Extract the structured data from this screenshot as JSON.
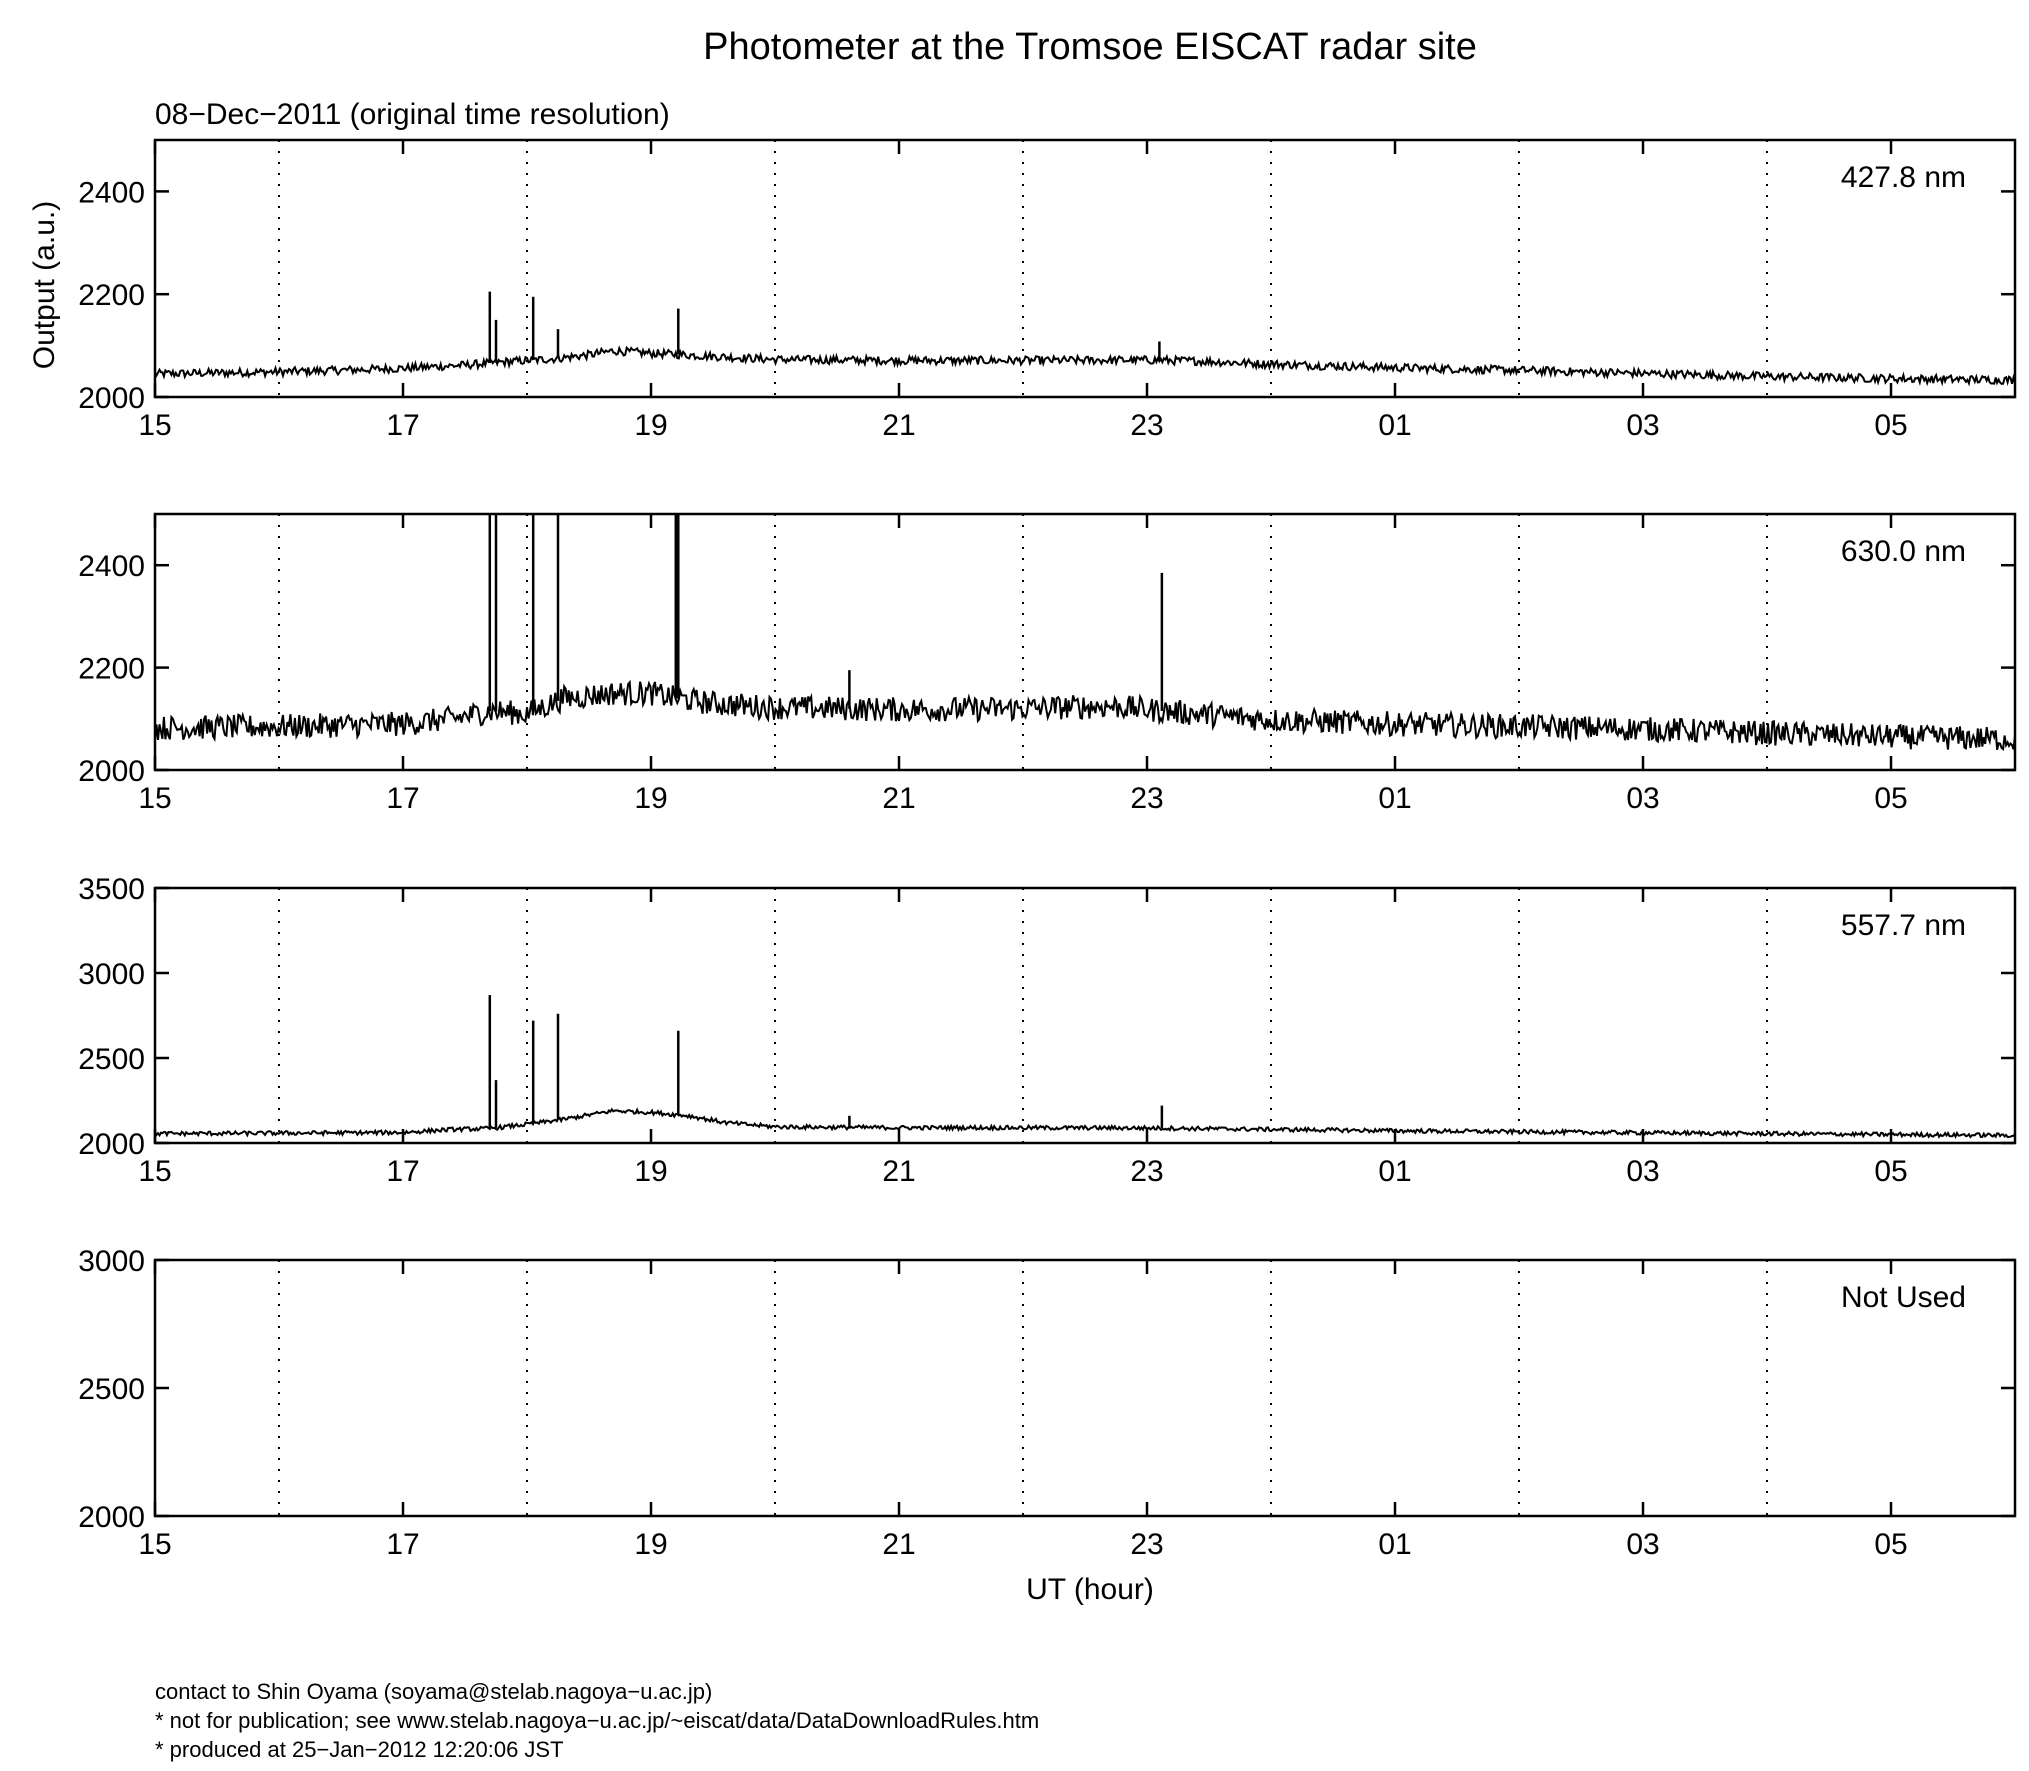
{
  "figure": {
    "title": "Photometer at the Tromsoe EISCAT radar site",
    "subtitle": "08−Dec−2011 (original time resolution)",
    "ylabel": "Output (a.u.)",
    "xlabel": "UT (hour)"
  },
  "footer": {
    "line1": "contact to Shin Oyama (soyama@stelab.nagoya−u.ac.jp)",
    "line2": "* not for publication; see www.stelab.nagoya−u.ac.jp/~eiscat/data/DataDownloadRules.htm",
    "line3": "* produced at 25−Jan−2012 12:20:06 JST"
  },
  "chart_data": [
    {
      "type": "line",
      "label": "427.8 nm",
      "xlim": [
        15,
        30
      ],
      "ylim": [
        2000,
        2500
      ],
      "yticks": [
        2000,
        2200,
        2400
      ],
      "xticks": [
        "15",
        "17",
        "19",
        "21",
        "23",
        "01",
        "03",
        "05"
      ],
      "xtick_hours": [
        15,
        17,
        19,
        21,
        23,
        25,
        27,
        29
      ],
      "dotted_grid_hours": [
        16,
        18,
        20,
        22,
        24,
        26,
        28
      ],
      "series": [
        {
          "x": [
            15,
            15.5,
            16,
            16.5,
            17,
            17.5,
            17.8,
            18.2,
            18.5,
            18.7,
            19,
            19.2,
            19.5,
            20,
            21,
            22,
            23,
            23.4,
            24,
            25,
            26,
            27,
            28,
            29,
            30
          ],
          "y": [
            2045,
            2047,
            2049,
            2052,
            2056,
            2062,
            2068,
            2074,
            2082,
            2090,
            2085,
            2083,
            2079,
            2073,
            2071,
            2071,
            2072,
            2070,
            2064,
            2057,
            2052,
            2046,
            2040,
            2036,
            2033
          ],
          "noise": 8,
          "spikes": [
            [
              17.7,
              2205
            ],
            [
              17.75,
              2150
            ],
            [
              18.05,
              2195
            ],
            [
              18.25,
              2132
            ],
            [
              19.22,
              2172
            ],
            [
              23.1,
              2108
            ]
          ]
        }
      ]
    },
    {
      "type": "line",
      "label": "630.0 nm",
      "xlim": [
        15,
        30
      ],
      "ylim": [
        2000,
        2500
      ],
      "yticks": [
        2000,
        2200,
        2400
      ],
      "xticks": [
        "15",
        "17",
        "19",
        "21",
        "23",
        "01",
        "03",
        "05"
      ],
      "xtick_hours": [
        15,
        17,
        19,
        21,
        23,
        25,
        27,
        29
      ],
      "dotted_grid_hours": [
        16,
        18,
        20,
        22,
        24,
        26,
        28
      ],
      "series": [
        {
          "x": [
            15,
            16,
            17,
            17.4,
            17.7,
            18,
            18.3,
            18.7,
            19,
            19.2,
            19.5,
            20,
            21,
            22,
            22.7,
            23,
            23.5,
            24,
            25,
            26,
            27,
            28,
            29,
            30
          ],
          "y": [
            2082,
            2085,
            2090,
            2100,
            2115,
            2110,
            2140,
            2150,
            2150,
            2140,
            2130,
            2122,
            2118,
            2120,
            2125,
            2118,
            2108,
            2098,
            2090,
            2085,
            2080,
            2072,
            2065,
            2060
          ],
          "noise": 24,
          "spikes": [
            [
              17.7,
              2500
            ],
            [
              17.75,
              2500
            ],
            [
              18.05,
              2500
            ],
            [
              18.25,
              2500
            ],
            [
              19.2,
              2500
            ],
            [
              19.22,
              2500
            ],
            [
              23.12,
              2385
            ],
            [
              20.6,
              2195
            ]
          ]
        }
      ]
    },
    {
      "type": "line",
      "label": "557.7 nm",
      "xlim": [
        15,
        30
      ],
      "ylim": [
        2000,
        3500
      ],
      "yticks": [
        2000,
        2500,
        3000,
        3500
      ],
      "xticks": [
        "15",
        "17",
        "19",
        "21",
        "23",
        "01",
        "03",
        "05"
      ],
      "xtick_hours": [
        15,
        17,
        19,
        21,
        23,
        25,
        27,
        29
      ],
      "dotted_grid_hours": [
        16,
        18,
        20,
        22,
        24,
        26,
        28
      ],
      "series": [
        {
          "x": [
            15,
            16,
            17,
            17.4,
            17.7,
            18,
            18.3,
            18.7,
            19,
            19.3,
            19.6,
            20,
            21,
            22,
            23,
            24,
            25,
            26,
            27,
            28,
            29,
            30
          ],
          "y": [
            2055,
            2058,
            2062,
            2080,
            2085,
            2110,
            2140,
            2190,
            2180,
            2160,
            2120,
            2095,
            2090,
            2090,
            2088,
            2080,
            2072,
            2066,
            2060,
            2055,
            2050,
            2045
          ],
          "noise": 12,
          "spikes": [
            [
              17.7,
              2870
            ],
            [
              17.75,
              2370
            ],
            [
              18.05,
              2720
            ],
            [
              18.25,
              2760
            ],
            [
              19.22,
              2660
            ],
            [
              23.12,
              2220
            ],
            [
              20.6,
              2160
            ]
          ]
        }
      ]
    },
    {
      "type": "line",
      "label": "Not Used",
      "xlim": [
        15,
        30
      ],
      "ylim": [
        2000,
        3000
      ],
      "yticks": [
        2000,
        2500,
        3000
      ],
      "xticks": [
        "15",
        "17",
        "19",
        "21",
        "23",
        "01",
        "03",
        "05"
      ],
      "xtick_hours": [
        15,
        17,
        19,
        21,
        23,
        25,
        27,
        29
      ],
      "dotted_grid_hours": [
        16,
        18,
        20,
        22,
        24,
        26,
        28
      ],
      "series": []
    }
  ]
}
